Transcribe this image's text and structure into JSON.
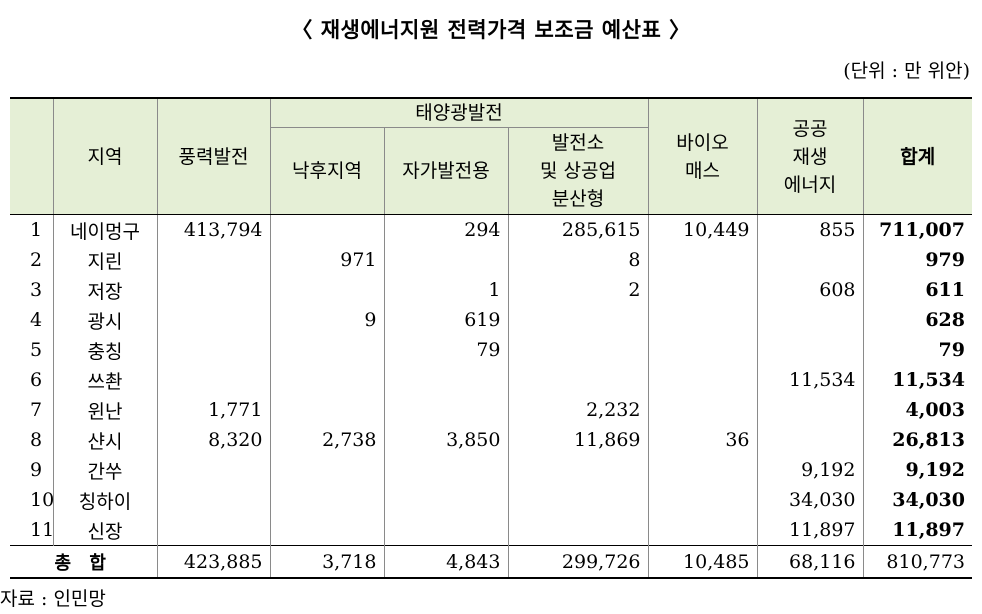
{
  "title": "〈 재생에너지원 전력가격 보조금 예산표 〉",
  "unit": "(단위 : 만 위안)",
  "headers": {
    "region": "지역",
    "wind": "풍력발전",
    "solar_group": "태양광발전",
    "solar_poor": "낙후지역",
    "solar_self": "자가발전용",
    "solar_dist_1": "발전소",
    "solar_dist_2": "및 상공업",
    "solar_dist_3": "분산형",
    "bio_1": "바이오",
    "bio_2": "매스",
    "public_1": "공공",
    "public_2": "재생",
    "public_3": "에너지",
    "total": "합계"
  },
  "rows": [
    {
      "no": "1",
      "region": "네이멍구",
      "wind": "413,794",
      "poor": "",
      "self": "294",
      "dist": "285,615",
      "bio": "10,449",
      "public": "855",
      "total": "711,007"
    },
    {
      "no": "2",
      "region": "지린",
      "wind": "",
      "poor": "971",
      "self": "",
      "dist": "8",
      "bio": "",
      "public": "",
      "total": "979"
    },
    {
      "no": "3",
      "region": "저장",
      "wind": "",
      "poor": "",
      "self": "1",
      "dist": "2",
      "bio": "",
      "public": "608",
      "total": "611"
    },
    {
      "no": "4",
      "region": "광시",
      "wind": "",
      "poor": "9",
      "self": "619",
      "dist": "",
      "bio": "",
      "public": "",
      "total": "628"
    },
    {
      "no": "5",
      "region": "충칭",
      "wind": "",
      "poor": "",
      "self": "79",
      "dist": "",
      "bio": "",
      "public": "",
      "total": "79"
    },
    {
      "no": "6",
      "region": "쓰촨",
      "wind": "",
      "poor": "",
      "self": "",
      "dist": "",
      "bio": "",
      "public": "11,534",
      "total": "11,534"
    },
    {
      "no": "7",
      "region": "윈난",
      "wind": "1,771",
      "poor": "",
      "self": "",
      "dist": "2,232",
      "bio": "",
      "public": "",
      "total": "4,003"
    },
    {
      "no": "8",
      "region": "샨시",
      "wind": "8,320",
      "poor": "2,738",
      "self": "3,850",
      "dist": "11,869",
      "bio": "36",
      "public": "",
      "total": "26,813"
    },
    {
      "no": "9",
      "region": "간쑤",
      "wind": "",
      "poor": "",
      "self": "",
      "dist": "",
      "bio": "",
      "public": "9,192",
      "total": "9,192"
    },
    {
      "no": "10",
      "region": "칭하이",
      "wind": "",
      "poor": "",
      "self": "",
      "dist": "",
      "bio": "",
      "public": "34,030",
      "total": "34,030"
    },
    {
      "no": "11",
      "region": "신장",
      "wind": "",
      "poor": "",
      "self": "",
      "dist": "",
      "bio": "",
      "public": "11,897",
      "total": "11,897"
    }
  ],
  "totals": {
    "label": "총 합",
    "wind": "423,885",
    "poor": "3,718",
    "self": "4,843",
    "dist": "299,726",
    "bio": "10,485",
    "public": "68,116",
    "total": "810,773"
  },
  "source": "자료 : 인민망",
  "colors": {
    "header_bg": "#e5efd6"
  }
}
